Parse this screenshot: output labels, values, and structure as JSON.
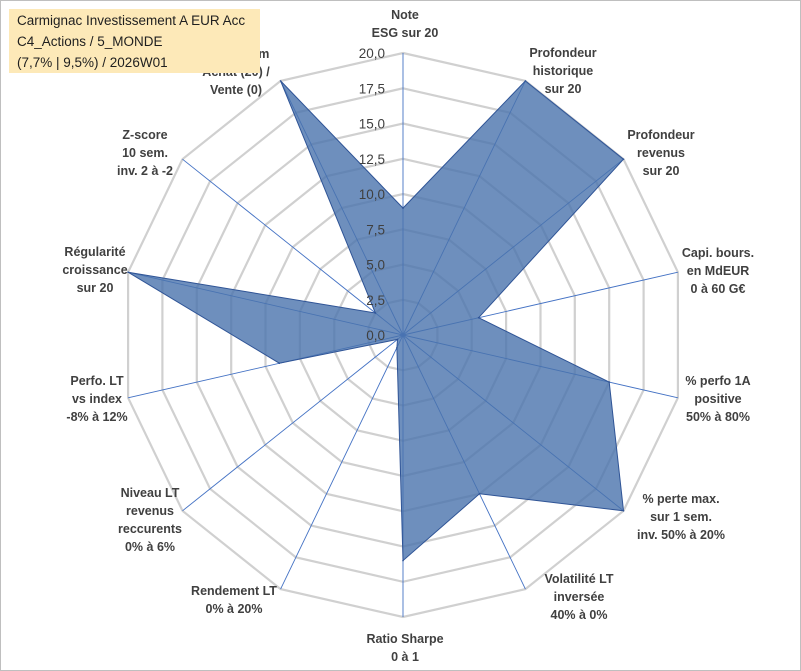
{
  "header": {
    "line1": "Carmignac Investissement A EUR Acc",
    "line2": "C4_Actions / 5_MONDE",
    "line3": "(7,7% | 9,5%) / 2026W01"
  },
  "colors": {
    "fill": "#4a73ad",
    "stroke": "#2f5496",
    "grid": "#d0d0d0",
    "spoke": "#4472c4",
    "title_bg": "#fde9b8",
    "text": "#404040"
  },
  "chart_data": {
    "type": "radar",
    "title": "Carmignac Investissement A EUR Acc",
    "rlim": [
      0,
      20
    ],
    "tick_values": [
      0,
      2.5,
      5,
      7.5,
      10,
      12.5,
      15,
      17.5,
      20
    ],
    "tick_labels": [
      "0,0",
      "2,5",
      "5,0",
      "7,5",
      "10,0",
      "12,5",
      "15,0",
      "17,5",
      "20,0"
    ],
    "grid": true,
    "axes": [
      {
        "label": [
          "Note",
          "ESG sur 20"
        ],
        "value": 9.0
      },
      {
        "label": [
          "Profondeur",
          "historique",
          "sur 20"
        ],
        "value": 20.0
      },
      {
        "label": [
          "Profondeur",
          "revenus",
          "sur 20"
        ],
        "value": 20.0
      },
      {
        "label": [
          "Capi. bours.",
          "en MdEUR",
          "0 à 60 G€"
        ],
        "value": 5.5
      },
      {
        "label": [
          "% perfo 1A",
          "positive",
          "50% à 80%"
        ],
        "value": 15.0
      },
      {
        "label": [
          "% perte max.",
          "sur 1 sem.",
          "inv. 50% à 20%"
        ],
        "value": 20.0
      },
      {
        "label": [
          "Volatilité LT",
          "inversée",
          "40% à 0%"
        ],
        "value": 12.5
      },
      {
        "label": [
          "Ratio Sharpe",
          "0 à 1"
        ],
        "value": 16.0
      },
      {
        "label": [
          "Rendement LT",
          "0% à 20%"
        ],
        "value": 1.0
      },
      {
        "label": [
          "Niveau LT",
          "revenus",
          "reccurents",
          "0% à 6%"
        ],
        "value": 0.5
      },
      {
        "label": [
          "Perfo. LT",
          "vs index",
          "-8% à 12%"
        ],
        "value": 9.0
      },
      {
        "label": [
          "Régularité",
          "croissance",
          "sur 20"
        ],
        "value": 20.0
      },
      {
        "label": [
          "Z-score",
          "10 sem.",
          "inv. 2 à -2"
        ],
        "value": 2.5
      },
      {
        "label": [
          "Momentum",
          "Achat (20) /",
          "Vente (0)"
        ],
        "value": 20.0
      }
    ]
  }
}
